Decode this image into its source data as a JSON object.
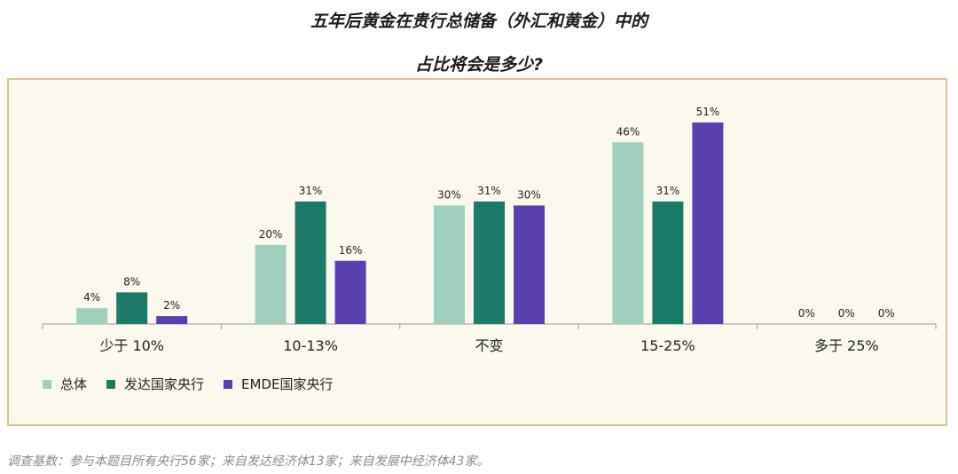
{
  "chart_data": {
    "type": "bar",
    "title_line1": "五年后黄金在贵行总储备（外汇和黄金）中的",
    "title_line2": "占比将会是多少?",
    "categories": [
      "少于 10%",
      "10-13%",
      "不变",
      "15-25%",
      "多于 25%"
    ],
    "series": [
      {
        "name": "总体",
        "color": "#9fcfbd",
        "values": [
          4,
          20,
          30,
          46,
          0
        ],
        "labels": [
          "4%",
          "20%",
          "30%",
          "46%",
          "0%"
        ]
      },
      {
        "name": "发达国家央行",
        "color": "#1b7a68",
        "values": [
          8,
          31,
          31,
          31,
          0
        ],
        "labels": [
          "8%",
          "31%",
          "31%",
          "31%",
          "0%"
        ]
      },
      {
        "name": "EMDE国家央行",
        "color": "#5a3fae",
        "values": [
          2,
          16,
          30,
          51,
          0
        ],
        "labels": [
          "2%",
          "16%",
          "30%",
          "51%",
          "0%"
        ]
      }
    ],
    "ylim": [
      0,
      51
    ],
    "xlabel": "",
    "ylabel": "",
    "grid": false,
    "legend_position": "bottom-left"
  },
  "colors": {
    "panel_background": "#fbf8ee",
    "panel_border": "#d9c48d",
    "axis": "#999999"
  },
  "footnote": "调查基数：参与本题目所有央行56家；来自发达经济体13家；来自发展中经济体43家。"
}
